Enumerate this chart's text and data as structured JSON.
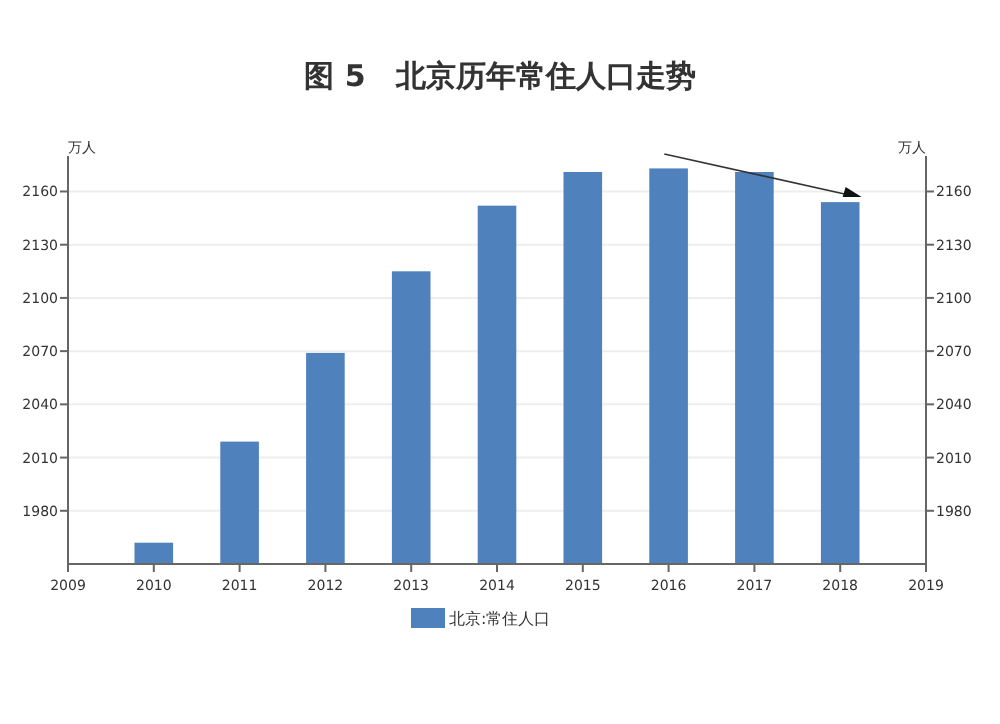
{
  "chart_data": {
    "type": "bar",
    "title": "图 5　北京历年常住人口走势",
    "ylabel": "万人",
    "y2label": "万人",
    "x": [
      2010,
      2011,
      2012,
      2013,
      2014,
      2015,
      2016,
      2017,
      2018
    ],
    "series": [
      {
        "name": "北京:常住人口",
        "color": "#4f81bd",
        "values": [
          1962,
          2019,
          2069,
          2115,
          2152,
          2171,
          2173,
          2171,
          2154
        ]
      }
    ],
    "xlim": [
      2009,
      2019
    ],
    "xticks": [
      2009,
      2010,
      2011,
      2012,
      2013,
      2014,
      2015,
      2016,
      2017,
      2018,
      2019
    ],
    "ylim": [
      1950,
      2180
    ],
    "yticks": [
      1980,
      2010,
      2040,
      2070,
      2100,
      2130,
      2160
    ],
    "y2lim": [
      1950,
      2180
    ],
    "y2ticks": [
      1980,
      2010,
      2040,
      2070,
      2100,
      2130,
      2160
    ],
    "grid": "y",
    "legend": "bottom"
  }
}
